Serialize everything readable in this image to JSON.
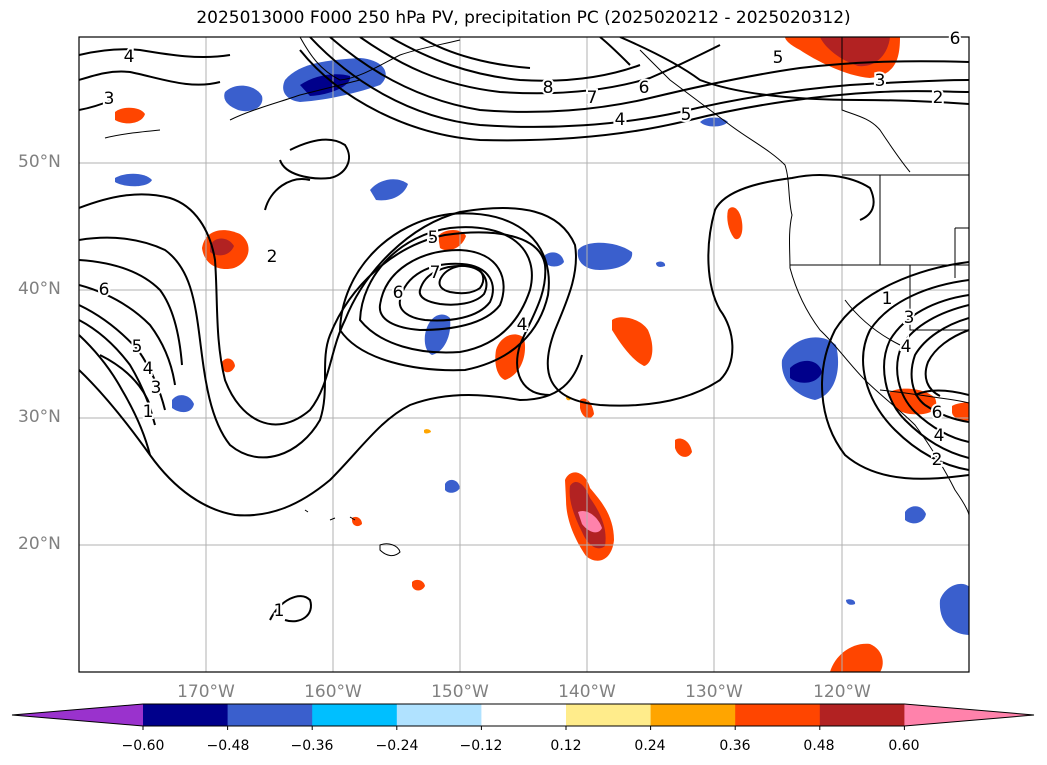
{
  "title": "2025013000 F000 250 hPa PV, precipitation PC (2025020212 - 2025020312)",
  "map": {
    "lon_range": [
      -180,
      -110
    ],
    "lat_range": [
      10,
      60
    ],
    "lat_labels": [
      "50°N",
      "40°N",
      "30°N",
      "20°N"
    ],
    "lon_labels": [
      "170°W",
      "160°W",
      "150°W",
      "140°W",
      "130°W",
      "120°W"
    ],
    "contour_labels": [
      "4",
      "3",
      "2",
      "6",
      "5",
      "4",
      "3",
      "1",
      "8",
      "7",
      "6",
      "5",
      "4",
      "7",
      "6",
      "5",
      "4",
      "5",
      "3",
      "2",
      "1",
      "3",
      "4",
      "6",
      "4",
      "2",
      "1",
      "6"
    ],
    "colors": {
      "coast": "#000000",
      "contour": "#000000",
      "grid": "#b0b0b0"
    }
  },
  "colorbar": {
    "ticks": [
      "−0.60",
      "−0.48",
      "−0.36",
      "−0.24",
      "−0.12",
      "0.12",
      "0.24",
      "0.36",
      "0.48",
      "0.60"
    ],
    "colors": [
      "#9a32cd",
      "#00008b",
      "#3a5fcd",
      "#00bfff",
      "#b0e2ff",
      "#ffffff",
      "#ffec8b",
      "#ffa500",
      "#ff4500",
      "#b22222",
      "#ff82ab"
    ]
  }
}
